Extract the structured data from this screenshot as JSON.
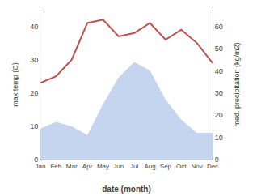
{
  "chart_data": {
    "type": "line",
    "xlabel": "date (month)",
    "ylabel": "max temp (C)",
    "y2label": "med. precipitation (kg/m2)",
    "categories": [
      "Jan",
      "Feb",
      "Mar",
      "Apr",
      "May",
      "Jun",
      "Jul",
      "Aug",
      "Sep",
      "Oct",
      "Nov",
      "Dec"
    ],
    "series": [
      {
        "type": "area",
        "axis": "y2",
        "color": "#c5d5f0",
        "values": [
          14,
          17,
          15,
          11,
          25,
          37,
          44,
          40,
          27,
          18,
          12,
          12
        ]
      },
      {
        "type": "line",
        "color": "#c0504d",
        "values": [
          23,
          25,
          30,
          41,
          42,
          37,
          38,
          41,
          36,
          39,
          35,
          29
        ]
      }
    ],
    "ylim": [
      0,
      45
    ],
    "yticks": [
      0,
      10,
      20,
      30,
      40
    ],
    "y2lim": [
      0,
      67.5
    ],
    "y2ticks": [
      0,
      10,
      20,
      30,
      40,
      50,
      60
    ],
    "grid": false
  }
}
